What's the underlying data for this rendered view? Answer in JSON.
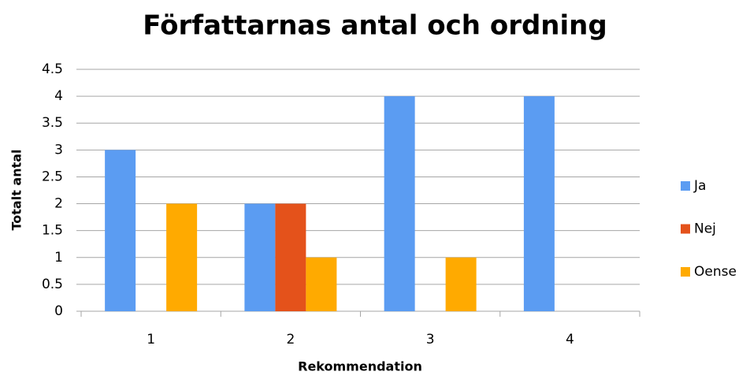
{
  "chart_data": {
    "type": "bar",
    "title": "Författarnas antal och ordning",
    "x_label": "Rekommendation",
    "y_label": "Totalt antal",
    "categories": [
      "1",
      "2",
      "3",
      "4"
    ],
    "series": [
      {
        "name": "Ja",
        "color": "#5b9cf2",
        "values": [
          3,
          2,
          4,
          4
        ]
      },
      {
        "name": "Nej",
        "color": "#e4521b",
        "values": [
          0,
          2,
          0,
          0
        ]
      },
      {
        "name": "Oense",
        "color": "#ffaa00",
        "values": [
          2,
          1,
          1,
          0
        ]
      }
    ],
    "ylim": [
      0,
      4.5
    ],
    "yticks": [
      0,
      0.5,
      1,
      1.5,
      2,
      2.5,
      3,
      3.5,
      4,
      4.5
    ],
    "grid": true,
    "legend": "right"
  }
}
